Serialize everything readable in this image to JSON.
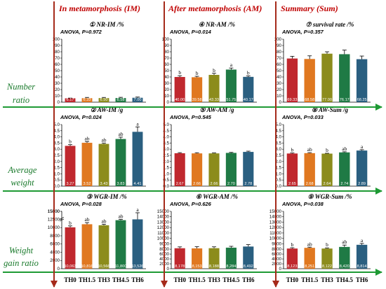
{
  "header": {
    "columns": [
      "In metamorphosis (IM)",
      "After metamorphosis (AM)",
      "Summary (Sum)"
    ]
  },
  "row_labels": [
    [
      "Number",
      "ratio"
    ],
    [
      "Average",
      "weight"
    ],
    [
      "Weight",
      "gain ratio"
    ]
  ],
  "x_categories": [
    "TH0",
    "TH1.5",
    "TH3",
    "TH4.5",
    "TH6"
  ],
  "colors": {
    "bars": [
      "#c0282e",
      "#e07820",
      "#8c8c1c",
      "#1f7a45",
      "#2a5f80"
    ],
    "arrow_green": "#1e9a34",
    "arrow_red": "#a52a1a",
    "header_red": "#c00000"
  },
  "chart_data": [
    {
      "type": "bar",
      "circled": "①",
      "title": "NR-IM /%",
      "anova": "ANOVA, P=0.972",
      "categories": [
        "TH0",
        "TH1.5",
        "TH3",
        "TH4.5",
        "TH6"
      ],
      "values": [
        6.17,
        6.33,
        6.5,
        6.58,
        7.0
      ],
      "errors": [
        0.3,
        1.2,
        1.0,
        1.1,
        1.1
      ],
      "value_labels": [
        "6.17",
        "6.33",
        "6.50",
        "6.58",
        "7.00"
      ],
      "sig": [
        "",
        "",
        "",
        "",
        ""
      ],
      "ylim": [
        0,
        100
      ],
      "yticks": [
        0,
        10,
        20,
        30,
        40,
        50,
        60,
        70,
        80,
        90,
        100
      ]
    },
    {
      "type": "bar",
      "circled": "④",
      "title": "NR-AM /%",
      "anova": "ANOVA, P=0.014",
      "categories": [
        "TH0",
        "TH1.5",
        "TH3",
        "TH4.5",
        "TH6"
      ],
      "values": [
        40.0,
        39.58,
        43.33,
        51.75,
        40.17
      ],
      "errors": [
        2.0,
        1.5,
        2.5,
        2.5,
        1.5
      ],
      "value_labels": [
        "40.00",
        "39.58",
        "43.33",
        "51.75",
        "40.17"
      ],
      "sig": [
        "b",
        "b",
        "b",
        "a",
        "b"
      ],
      "ylim": [
        0,
        100
      ],
      "yticks": [
        0,
        10,
        20,
        30,
        40,
        50,
        60,
        70,
        80,
        90,
        100
      ]
    },
    {
      "type": "bar",
      "circled": "⑦",
      "title": "survival rate /%",
      "anova": "ANOVA, P=0.357",
      "categories": [
        "TH0",
        "TH1.5",
        "TH3",
        "TH4.5",
        "TH6"
      ],
      "values": [
        69.33,
        68.58,
        77.0,
        76.17,
        68.25
      ],
      "errors": [
        3.5,
        5.0,
        3.0,
        6.5,
        5.0
      ],
      "value_labels": [
        "69.33",
        "68.58",
        "77.00",
        "76.17",
        "68.25"
      ],
      "sig": [
        "",
        "",
        "",
        "",
        ""
      ],
      "ylim": [
        0,
        100
      ],
      "yticks": [
        0,
        10,
        20,
        30,
        40,
        50,
        60,
        70,
        80,
        90,
        100
      ]
    },
    {
      "type": "bar",
      "circled": "②",
      "title": "AW-IM /g",
      "anova": "ANOVA, P=0.024",
      "categories": [
        "TH0",
        "TH1.5",
        "TH3",
        "TH4.5",
        "TH6"
      ],
      "values": [
        3.27,
        3.52,
        3.43,
        3.83,
        4.41
      ],
      "errors": [
        0.1,
        0.1,
        0.06,
        0.15,
        0.4
      ],
      "value_labels": [
        "3.27",
        "3.52",
        "3.43",
        "3.83",
        "4.41"
      ],
      "sig": [
        "b",
        "ab",
        "ab",
        "ab",
        "a"
      ],
      "ylim": [
        0,
        5
      ],
      "yticks": [
        0,
        0.5,
        1,
        1.5,
        2,
        2.5,
        3,
        3.5,
        4,
        4.5,
        5
      ],
      "ytick_labels": [
        "0.0",
        "0.5",
        "1.0",
        "1.5",
        "2.0",
        "2.5",
        "3.0",
        "3.5",
        "4.0",
        "4.5",
        "5.0"
      ]
    },
    {
      "type": "bar",
      "circled": "⑤",
      "title": "AW-AM /g",
      "anova": "ANOVA, P=0.545",
      "categories": [
        "TH0",
        "TH1.5",
        "TH3",
        "TH4.5",
        "TH6"
      ],
      "values": [
        2.67,
        2.66,
        2.66,
        2.7,
        2.78
      ],
      "errors": [
        0.05,
        0.05,
        0.04,
        0.04,
        0.06
      ],
      "value_labels": [
        "2.67",
        "2.66",
        "2.66",
        "2.70",
        "2.78"
      ],
      "sig": [
        "",
        "",
        "",
        "",
        ""
      ],
      "ylim": [
        0,
        5
      ],
      "yticks": [
        0,
        0.5,
        1,
        1.5,
        2,
        2.5,
        3,
        3.5,
        4,
        4.5,
        5
      ],
      "ytick_labels": [
        "0.0",
        "0.5",
        "1.0",
        "1.5",
        "2.0",
        "2.5",
        "3.0",
        "3.5",
        "4.0",
        "4.5",
        "5.0"
      ]
    },
    {
      "type": "bar",
      "circled": "⑧",
      "title": "AW-Sum /g",
      "anova": "ANOVA, P=0.033",
      "categories": [
        "TH0",
        "TH1.5",
        "TH3",
        "TH4.5",
        "TH6"
      ],
      "values": [
        2.65,
        2.68,
        2.64,
        2.74,
        2.89
      ],
      "errors": [
        0.04,
        0.04,
        0.03,
        0.05,
        0.07
      ],
      "value_labels": [
        "2.65",
        "2.68",
        "2.64",
        "2.74",
        "2.89"
      ],
      "sig": [
        "b",
        "ab",
        "b",
        "ab",
        "a"
      ],
      "ylim": [
        0,
        5
      ],
      "yticks": [
        0,
        0.5,
        1,
        1.5,
        2,
        2.5,
        3,
        3.5,
        4,
        4.5,
        5
      ],
      "ytick_labels": [
        "0.0",
        "0.5",
        "1.0",
        "1.5",
        "2.0",
        "2.5",
        "3.0",
        "3.5",
        "4.0",
        "4.5",
        "5.0"
      ]
    },
    {
      "type": "bar",
      "circled": "③",
      "title": "WGR-IM /%",
      "anova": "ANOVA, P=0.028",
      "categories": [
        "TH0",
        "TH1.5",
        "TH3",
        "TH4.5",
        "TH6"
      ],
      "values": [
        10063,
        10816,
        10566,
        11800,
        13526
      ],
      "errors": [
        350,
        400,
        250,
        700,
        1300
      ],
      "value_labels": [
        "10,063",
        "10,816",
        "10,566",
        "11,800",
        "13,526"
      ],
      "sig": [
        "b",
        "ab",
        "ab",
        "ab",
        "a"
      ],
      "ylim": [
        0,
        15000
      ],
      "yticks": [
        0,
        2000,
        4000,
        6000,
        8000,
        10000,
        15000
      ],
      "ytick_labels": [
        "0",
        "2000",
        "4000",
        "6000",
        "8000",
        "10000",
        "15000"
      ],
      "axis_break": [
        12000,
        14000
      ],
      "yticks_upper": [
        12500,
        15000
      ],
      "ytick_labels_upper": [
        "12500",
        "15000"
      ]
    },
    {
      "type": "bar",
      "circled": "⑥",
      "title": "WGR-AM /%",
      "anova": "ANOVA, P=0.626",
      "categories": [
        "TH0",
        "TH1.5",
        "TH3",
        "TH4.5",
        "TH6"
      ],
      "values": [
        8178,
        8153,
        8188,
        8284,
        8492
      ],
      "errors": [
        250,
        300,
        250,
        250,
        350
      ],
      "value_labels": [
        "8,178",
        "8,153",
        "8,188",
        "8,284",
        "8,492"
      ],
      "sig": [
        "",
        "",
        "",
        "",
        ""
      ],
      "ylim": [
        0,
        15000
      ],
      "yticks": [
        0,
        2000,
        4000,
        6000,
        8000,
        9000,
        10000,
        11000,
        12000,
        13000,
        14000,
        15000
      ],
      "ytick_labels": [
        "0",
        "2000",
        "4000",
        "6000",
        "8000",
        "9000",
        "10000",
        "11000",
        "12000",
        "13000",
        "14000",
        "15000"
      ],
      "axis_break": [
        8000,
        8000
      ]
    },
    {
      "type": "bar",
      "circled": "⑨",
      "title": "WGR-Sum /%",
      "anova": "ANOVA, P=0.038",
      "categories": [
        "TH0",
        "TH1.5",
        "TH3",
        "TH4.5",
        "TH6"
      ],
      "values": [
        8123,
        8251,
        8122,
        8420,
        8814
      ],
      "errors": [
        150,
        120,
        120,
        350,
        250
      ],
      "value_labels": [
        "8,123",
        "8,251",
        "8,122",
        "8,420",
        "8,814"
      ],
      "sig": [
        "b",
        "ab",
        "b",
        "ab",
        "a"
      ],
      "ylim": [
        0,
        15000
      ],
      "yticks": [
        0,
        2000,
        4000,
        6000,
        8000,
        9000,
        10000,
        11000,
        12000,
        13000,
        14000,
        15000
      ],
      "ytick_labels": [
        "0",
        "2000",
        "4000",
        "6000",
        "8000",
        "9000",
        "10000",
        "11000",
        "12000",
        "13000",
        "14000",
        "15000"
      ],
      "axis_break": [
        8000,
        8000
      ]
    }
  ]
}
